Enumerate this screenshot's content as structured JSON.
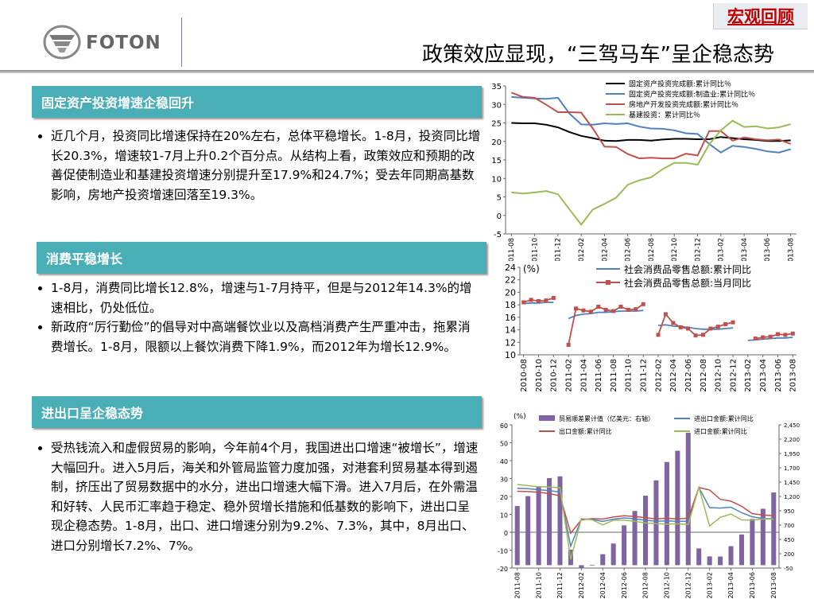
{
  "header": {
    "tag": "宏观回顾",
    "title": "政策效应显现，“三驾马车”呈企稳态势",
    "logo_text": "FOTON"
  },
  "sections": [
    {
      "heading": "固定资产投资增速企稳回升",
      "bullets": [
        "近几个月，投资同比增速保持在20%左右，总体平稳增长。1-8月，投资同比增长20.3%，增速较1-7月上升0.2个百分点。从结构上看，政策效应和预期的改善促使制造业和基建投资增速分别提升至17.9%和24.7%；受去年同期高基数影响，房地产投资增速回落至19.3%。"
      ]
    },
    {
      "heading": "消费平稳增长",
      "bullets": [
        "1-8月，消费同比增长12.8%，增速与1-7月持平，但是与2012年14.3%的增速相比，仍处低位。",
        "新政府“厉行勤俭”的倡导对中高端餐饮业以及高档消费产生严重冲击，拖累消费增长。1-8月，限额以上餐饮消费下降1.9%，而2012年为增长12.9%。"
      ]
    },
    {
      "heading": "进出口呈企稳态势",
      "bullets": [
        "受热钱流入和虚假贸易的影响，今年前4个月，我国进出口增速“被增长”，增速大幅回升。进入5月后，海关和外管局监管力度加强，对港套利贸易基本得到遏制，挤压出了贸易数据中的水分，进出口增速大幅下滑。进入7月后，在外需温和好转、人民币汇率趋于稳定、稳外贸增长措施和低基数的影响下，进出口呈现企稳态势。1-8月，出口、进口增速分别为9.2%、7.3%，其中，8月出口、进口分别增长7.2%、7%。"
      ]
    }
  ],
  "chart_data": [
    {
      "type": "line",
      "x": [
        "2011-08",
        "2011-09",
        "2011-10",
        "2011-11",
        "2011-12",
        "2012-01",
        "2012-02",
        "2012-03",
        "2012-04",
        "2012-05",
        "2012-06",
        "2012-07",
        "2012-08",
        "2012-09",
        "2012-10",
        "2012-11",
        "2012-12",
        "2013-01",
        "2013-02",
        "2013-03",
        "2013-04",
        "2013-05",
        "2013-06",
        "2013-07",
        "2013-08"
      ],
      "xticks": [
        "2011-08",
        "2011-10",
        "2011-12",
        "2012-02",
        "2012-04",
        "2012-06",
        "2012-08",
        "2012-10",
        "2012-12",
        "2013-02",
        "2013-04",
        "2013-06",
        "2013-08"
      ],
      "ylim": [
        -5,
        35
      ],
      "yticks": [
        -5,
        0,
        5,
        10,
        15,
        20,
        25,
        30,
        35
      ],
      "series": [
        {
          "name": "固定资产投资完成额:累计同比％",
          "color": "#000000",
          "values": [
            25,
            24.9,
            24.9,
            24.5,
            23.8,
            22.5,
            21.5,
            20.9,
            20.2,
            20.1,
            20.4,
            20.4,
            20.2,
            20.5,
            20.7,
            20.7,
            20.6,
            20.6,
            21.2,
            20.9,
            20.6,
            20.4,
            20.1,
            20.1,
            20.3
          ]
        },
        {
          "name": "固定资产投资完成额:制造业:累计同比％",
          "color": "#4f81bd",
          "values": [
            32,
            31.8,
            31.6,
            31.5,
            31.8,
            27.5,
            24.6,
            24.5,
            24.9,
            24.7,
            24.9,
            24,
            23.5,
            23.4,
            23,
            22.2,
            22,
            19.3,
            17,
            18.8,
            18.5,
            18,
            17.3,
            17,
            17.9
          ]
        },
        {
          "name": "房地产开发投资完成额:累计同比％",
          "color": "#c0504d",
          "values": [
            33.2,
            32,
            31.8,
            29.9,
            27.9,
            27.9,
            27.8,
            23.5,
            18.6,
            18.5,
            16.6,
            15.4,
            15.6,
            15.4,
            15.4,
            16.7,
            16.2,
            22.8,
            22.8,
            20.2,
            21.1,
            20.6,
            20.3,
            20.5,
            19.3
          ]
        },
        {
          "name": "基建投资：累计同比％",
          "color": "#9bbb59",
          "values": [
            6.2,
            5.9,
            6.2,
            6.6,
            5.7,
            1.6,
            -2.5,
            1.6,
            3.1,
            4.8,
            8.3,
            9.5,
            10.3,
            12.5,
            14.2,
            14.2,
            13.7,
            19.2,
            23,
            25.6,
            23.9,
            24.1,
            23.5,
            23.8,
            24.7
          ]
        }
      ]
    },
    {
      "type": "line",
      "ylabel": "(%)",
      "x": [
        "2010-08",
        "2010-09",
        "2010-10",
        "2010-11",
        "2010-12",
        "2011-01",
        "2011-02",
        "2011-03",
        "2011-04",
        "2011-05",
        "2011-06",
        "2011-07",
        "2011-08",
        "2011-09",
        "2011-10",
        "2011-11",
        "2011-12",
        "2012-01",
        "2012-02",
        "2012-03",
        "2012-04",
        "2012-05",
        "2012-06",
        "2012-07",
        "2012-08",
        "2012-09",
        "2012-10",
        "2012-11",
        "2012-12",
        "2013-01",
        "2013-02",
        "2013-03",
        "2013-04",
        "2013-05",
        "2013-06",
        "2013-07",
        "2013-08"
      ],
      "xticks": [
        "2010-08",
        "2010-10",
        "2010-12",
        "2011-02",
        "2011-04",
        "2011-06",
        "2011-08",
        "2011-10",
        "2011-12",
        "2012-02",
        "2012-04",
        "2012-06",
        "2012-08",
        "2012-10",
        "2012-12",
        "2013-02",
        "2013-04",
        "2013-06",
        "2013-08"
      ],
      "ylim": [
        10,
        24
      ],
      "yticks": [
        10,
        12,
        14,
        16,
        18,
        20,
        22,
        24
      ],
      "series": [
        {
          "name": "社会消费品零售总额:累计同比",
          "color": "#4f81bd",
          "values": [
            18.2,
            18.3,
            18.3,
            18.4,
            18.4,
            null,
            15.8,
            16.3,
            16.5,
            16.6,
            16.8,
            16.8,
            16.9,
            17,
            17,
            17,
            17.1,
            null,
            14.7,
            14.8,
            14.6,
            14.5,
            14.4,
            14.2,
            14.1,
            14.1,
            14.1,
            14.2,
            14.3,
            null,
            12.3,
            12.4,
            12.5,
            12.6,
            12.7,
            12.7,
            12.8
          ]
        },
        {
          "name": "社会消费品零售总额:当月同比",
          "color": "#c0504d",
          "values": [
            18.4,
            18.8,
            18.6,
            18.7,
            19.1,
            null,
            11.6,
            17.4,
            17.1,
            16.9,
            17.7,
            17.2,
            17.0,
            17.7,
            17.2,
            17.3,
            18.1,
            null,
            13.2,
            16.5,
            15.1,
            14.4,
            14.2,
            13.1,
            13.2,
            14.2,
            14.5,
            14.9,
            15.2,
            null,
            null,
            12.6,
            12.8,
            12.9,
            13.3,
            13.2,
            13.4
          ]
        }
      ]
    },
    {
      "type": "bar",
      "ylabel": "(%)",
      "x": [
        "2011-08",
        "2011-09",
        "2011-10",
        "2011-11",
        "2011-12",
        "2012-01",
        "2012-02",
        "2012-03",
        "2012-04",
        "2012-05",
        "2012-06",
        "2012-07",
        "2012-08",
        "2012-09",
        "2012-10",
        "2012-11",
        "2012-12",
        "2013-01",
        "2013-02",
        "2013-03",
        "2013-04",
        "2013-05",
        "2013-06",
        "2013-07",
        "2013-08"
      ],
      "xticks": [
        "2011-08",
        "2011-10",
        "2011-12",
        "2012-02",
        "2012-04",
        "2012-06",
        "2012-08",
        "2012-10",
        "2012-12",
        "2013-02",
        "2013-04",
        "2013-06",
        "2013-08"
      ],
      "ylim": [
        -20,
        60
      ],
      "yticks": [
        -20,
        -10,
        0,
        10,
        20,
        30,
        40,
        50,
        60
      ],
      "y2lim": [
        -50,
        2450
      ],
      "y2ticks": [
        -50,
        200,
        450,
        700,
        950,
        1200,
        1450,
        1700,
        1950,
        2200,
        2450
      ],
      "bar_series": {
        "name": "贸易顺差累计值（亿美元：右轴）",
        "color": "#8064a2",
        "values": [
          1033,
          1205,
          1375,
          1520,
          1551,
          272,
          -43,
          7,
          191,
          378,
          695,
          946,
          1213,
          1481,
          1801,
          1997,
          2311,
          292,
          153,
          151,
          332,
          536,
          807,
          985,
          1270
        ]
      },
      "series": [
        {
          "name": "进出口金额:累计同比",
          "color": "#4f81bd",
          "values": [
            24.6,
            24.3,
            23.8,
            23.2,
            22.5,
            -7.8,
            7.3,
            7.1,
            6.1,
            7.3,
            8,
            7.5,
            6.7,
            6.2,
            6.3,
            6.1,
            6.2,
            25,
            13.8,
            13.5,
            14,
            10.9,
            8.6,
            7.7,
            7.5
          ]
        },
        {
          "name": "出口金额:累计同比",
          "color": "#c0504d",
          "values": [
            22.9,
            22.7,
            22.3,
            21.6,
            20.3,
            -0.5,
            6.9,
            7.6,
            7.4,
            8.5,
            9.2,
            8.8,
            8.1,
            7.4,
            7.8,
            7.4,
            7.9,
            25,
            23.6,
            18.4,
            17.4,
            14.5,
            10.4,
            9.7,
            9.2
          ]
        },
        {
          "name": "进口金额:累计同比",
          "color": "#9bbb59",
          "values": [
            26.7,
            26,
            25.4,
            25.3,
            24.9,
            -15.3,
            7.7,
            7,
            4.1,
            6.7,
            6.7,
            6.1,
            5.2,
            4.8,
            4.6,
            4.7,
            4.3,
            25.1,
            3.5,
            8.3,
            10.2,
            6.9,
            6.8,
            7.4,
            7.3
          ]
        }
      ]
    }
  ]
}
